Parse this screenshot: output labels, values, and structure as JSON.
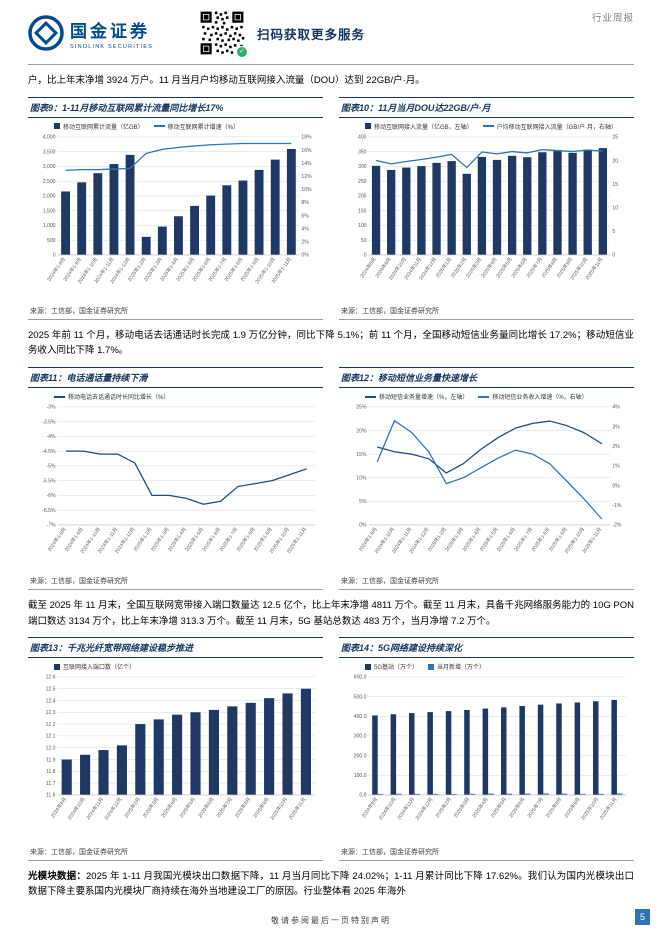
{
  "header": {
    "logo_cn": "国金证券",
    "logo_en": "SINOLINK SECURITIES",
    "qr_caption": "扫码获取更多服务",
    "report_type": "行业周报"
  },
  "paragraphs": {
    "p1": "户，比上年末净增 3924 万户。11 月当月户均移动互联网接入流量（DOU）达到 22GB/户·月。",
    "p2": "2025 年前 11 个月，移动电话去话通话时长完成 1.9 万亿分钟，同比下降 5.1%；前 11 个月，全国移动短信业务量同比增长 17.2%；移动短信业务收入同比下降 1.7%。",
    "p3": "截至 2025 年 11 月末，全国互联网宽带接入端口数量达 12.5 亿个，比上年末净增 4811 万个。截至 11 月末，具备千兆网络服务能力的 10G PON 端口数达 3134 万个，比上年末净增 313.3 万个。截至 11 月末，5G 基站总数达 483 万个，当月净增 7.2 万个。",
    "p4_label": "光模块数据：",
    "p4": "2025 年 1-11 月我国光模块出口数据下降，11 月当月同比下降 24.02%；1-11 月累计同比下降 17.62%。我们认为国内光模块出口数据下降主要系国内光模块厂商持续在海外当地建设工厂的原因。行业整体看 2025 年海外"
  },
  "footer": {
    "disclaimer": "敬请参阅最后一页特别声明",
    "page": "5"
  },
  "chart_data": [
    {
      "title": "图表9：1-11月移动互联网累计流量同比增长17%",
      "type": "bar+line",
      "source": "来源：工信部，国金证券研究所",
      "categories": [
        "2024年1-8月",
        "2024年1-9月",
        "2024年1-10月",
        "2024年1-11月",
        "2024年1-12月",
        "2025年1-2月",
        "2025年1-3月",
        "2025年1-4月",
        "2025年1-5月",
        "2025年1-6月",
        "2025年1-7月",
        "2025年1-8月",
        "2025年1-9月",
        "2025年1-10月",
        "2025年1-11月"
      ],
      "series": [
        {
          "name": "移动互联网累计流量（亿GB）",
          "kind": "bar",
          "axis": "left",
          "color": "#1F3864",
          "values": [
            2150,
            2460,
            2770,
            3080,
            3390,
            610,
            960,
            1310,
            1660,
            2010,
            2360,
            2520,
            2880,
            3230,
            3590
          ]
        },
        {
          "name": "移动互联网累计增速（%）",
          "kind": "line",
          "axis": "right",
          "color": "#2E75B6",
          "values": [
            12.9,
            13.0,
            13.0,
            13.1,
            13.2,
            15.5,
            16.1,
            16.4,
            16.6,
            16.8,
            16.9,
            17.0,
            17.0,
            17.0,
            17.0
          ]
        }
      ],
      "left_axis": {
        "min": 0,
        "max": 4000,
        "step": 500,
        "format": "thousands"
      },
      "right_axis": {
        "min": 0,
        "max": 18,
        "step": 2,
        "format": "percent"
      }
    },
    {
      "title": "图表10：11月当月DOU达22GB/户·月",
      "type": "bar+line",
      "source": "来源：工信部，国金证券研究所",
      "categories": [
        "2024年8月",
        "2024年9月",
        "2024年10月",
        "2024年11月",
        "2024年12月",
        "2025年1月",
        "2025年2月",
        "2025年3月",
        "2025年4月",
        "2025年5月",
        "2025年6月",
        "2025年7月",
        "2025年8月",
        "2025年9月",
        "2025年10月",
        "2025年11月"
      ],
      "series": [
        {
          "name": "移动互联网接入流量（亿GB，左轴）",
          "kind": "bar",
          "axis": "left",
          "color": "#1F3864",
          "values": [
            302,
            288,
            296,
            301,
            312,
            318,
            275,
            332,
            322,
            336,
            331,
            348,
            352,
            346,
            357,
            362
          ]
        },
        {
          "name": "户均移动互联网接入流量（GB/户·月，右轴）",
          "kind": "line",
          "axis": "right",
          "color": "#2E75B6",
          "values": [
            20.0,
            19.3,
            19.8,
            20.2,
            20.7,
            21.3,
            18.5,
            21.8,
            21.4,
            21.9,
            21.6,
            22.3,
            22.1,
            21.9,
            22.2,
            22.0
          ]
        }
      ],
      "left_axis": {
        "min": 0,
        "max": 400,
        "step": 50,
        "format": "plain"
      },
      "right_axis": {
        "min": 0,
        "max": 25,
        "step": 5,
        "format": "plain"
      }
    },
    {
      "title": "图表11：电话通话量持续下滑",
      "type": "line",
      "source": "来源：工信部，国金证券研究所",
      "categories": [
        "2024年1-8月",
        "2024年1-9月",
        "2024年1-10月",
        "2024年1-11月",
        "2024年1-12月",
        "2025年1-2月",
        "2025年1-3月",
        "2025年1-4月",
        "2025年1-5月",
        "2025年1-6月",
        "2025年1-7月",
        "2025年1-8月",
        "2025年1-9月",
        "2025年1-10月",
        "2025年1-11月"
      ],
      "series": [
        {
          "name": "移动电话去话通话时长同比增长（%）",
          "kind": "line",
          "axis": "left",
          "color": "#1F4E79",
          "values": [
            -4.5,
            -4.5,
            -4.6,
            -4.6,
            -4.9,
            -6.0,
            -6.0,
            -6.1,
            -6.3,
            -6.2,
            -5.7,
            -5.6,
            -5.5,
            -5.3,
            -5.1
          ]
        }
      ],
      "left_axis": {
        "min": -7,
        "max": -3,
        "step": 0.5,
        "format": "percent1"
      },
      "right_axis": null
    },
    {
      "title": "图表12：移动短信业务量快速增长",
      "type": "line",
      "source": "来源：工信部，国金证券研究所",
      "categories": [
        "2024年1-9月",
        "2024年1-10月",
        "2024年1-11月",
        "2024年1-12月",
        "2025年1-2月",
        "2025年1-3月",
        "2025年1-4月",
        "2025年1-5月",
        "2025年1-6月",
        "2025年1-7月",
        "2025年1-8月",
        "2025年1-9月",
        "2025年1-10月",
        "2025年1-11月"
      ],
      "series": [
        {
          "name": "移动短信业务量增速（%，左轴）",
          "kind": "line",
          "axis": "left",
          "color": "#1F4E79",
          "values": [
            16.5,
            15.5,
            15.0,
            14.0,
            11.0,
            13.0,
            16.0,
            18.5,
            20.5,
            21.5,
            22.0,
            21.0,
            19.5,
            17.2
          ]
        },
        {
          "name": "移动短信业务收入增速（%，右轴）",
          "kind": "line",
          "axis": "right",
          "color": "#2E75B6",
          "values": [
            1.2,
            3.3,
            2.7,
            1.7,
            0.1,
            0.4,
            0.9,
            1.4,
            1.8,
            1.6,
            1.1,
            0.2,
            -0.7,
            -1.7
          ]
        }
      ],
      "left_axis": {
        "min": 0,
        "max": 25,
        "step": 5,
        "format": "percent"
      },
      "right_axis": {
        "min": -2,
        "max": 4,
        "step": 1,
        "format": "percent"
      }
    },
    {
      "title": "图表13：千兆光纤宽带网络建设稳步推进",
      "type": "bar",
      "source": "来源：工信部，国金证券研究所",
      "categories": [
        "2024年9月",
        "2024年10月",
        "2024年11月",
        "2024年12月",
        "2025年2月",
        "2025年3月",
        "2025年4月",
        "2025年5月",
        "2025年6月",
        "2025年7月",
        "2025年8月",
        "2025年9月",
        "2025年10月",
        "2025年11月"
      ],
      "series": [
        {
          "name": "互联网接入端口数（亿个）",
          "kind": "bar",
          "axis": "left",
          "color": "#1F3864",
          "values": [
            11.9,
            11.94,
            11.98,
            12.02,
            12.2,
            12.24,
            12.28,
            12.3,
            12.32,
            12.35,
            12.38,
            12.42,
            12.46,
            12.5
          ]
        }
      ],
      "left_axis": {
        "min": 11.6,
        "max": 12.6,
        "step": 0.1,
        "format": "fixed1"
      },
      "right_axis": null
    },
    {
      "title": "图表14：5G网络建设持续深化",
      "type": "bar",
      "source": "来源：工信部，国金证券研究所",
      "categories": [
        "2024年9月",
        "2024年10月",
        "2024年11月",
        "2024年12月",
        "2025年2月",
        "2025年3月",
        "2025年4月",
        "2025年5月",
        "2025年6月",
        "2025年7月",
        "2025年8月",
        "2025年9月",
        "2025年10月",
        "2025年11月"
      ],
      "series": [
        {
          "name": "5G基站（万个）",
          "kind": "bar",
          "axis": "left",
          "color": "#1F3864",
          "values": [
            404,
            410,
            416,
            421,
            426,
            432,
            439,
            445,
            452,
            459,
            465,
            470,
            476,
            483
          ]
        },
        {
          "name": "当月新增（万个）",
          "kind": "bar",
          "axis": "left",
          "color": "#2E75B6",
          "values": [
            4.9,
            5.8,
            5.4,
            5.1,
            4.6,
            5.3,
            6.8,
            6.2,
            6.6,
            7.1,
            6.4,
            5.2,
            5.5,
            7.2
          ]
        }
      ],
      "left_axis": {
        "min": 0,
        "max": 600,
        "step": 100,
        "format": "fixed1"
      },
      "right_axis": null
    }
  ]
}
